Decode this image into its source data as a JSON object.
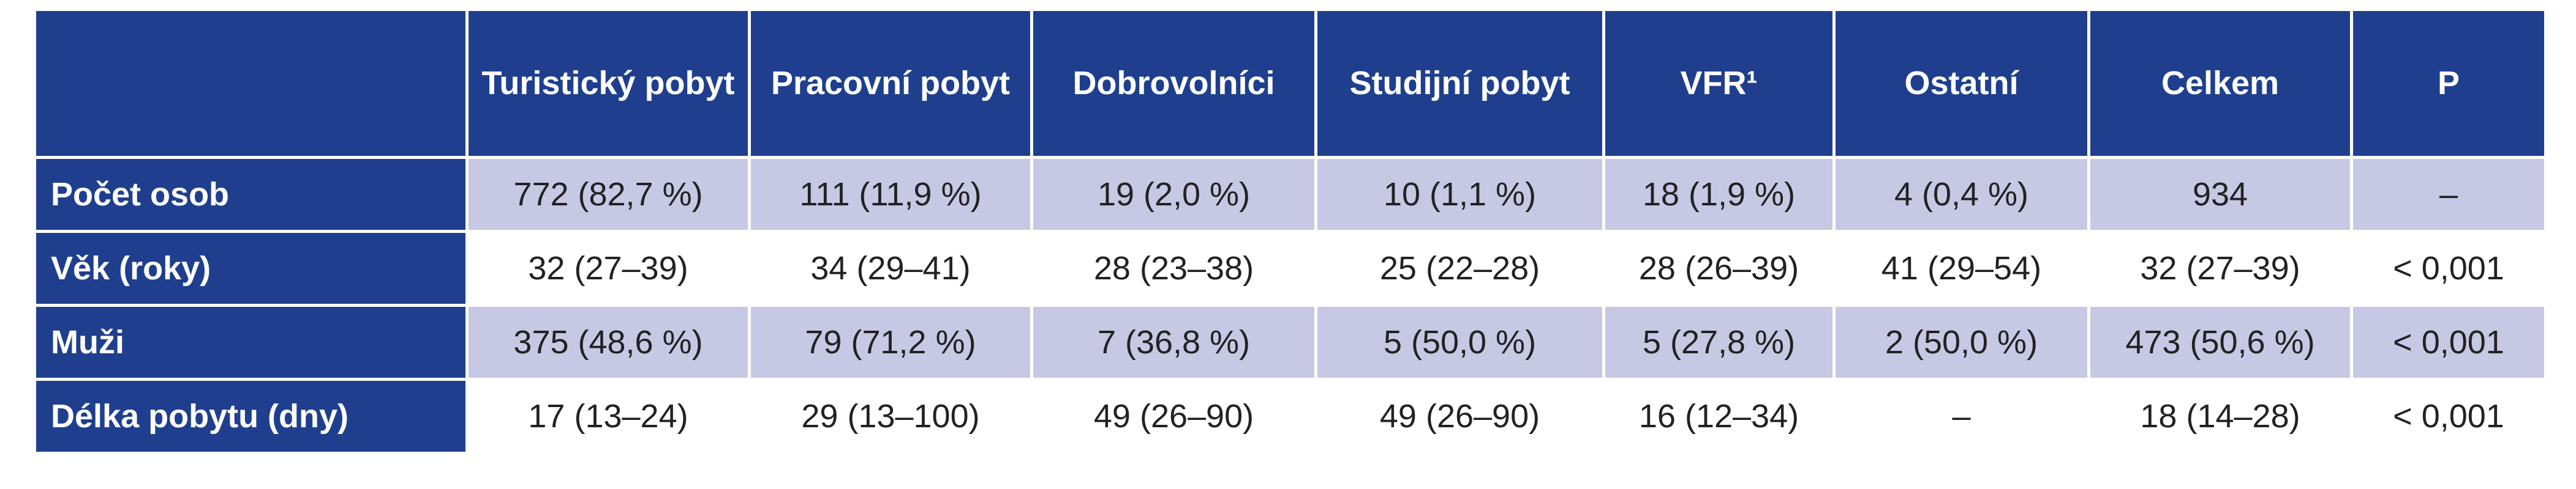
{
  "table": {
    "header": [
      "Turistický pobyt",
      "Pracovní pobyt",
      "Dobrovolníci",
      "Studijní pobyt",
      "VFR¹",
      "Ostatní",
      "Celkem",
      "P"
    ],
    "rows": [
      {
        "label": "Počet osob",
        "cells": [
          "772 (82,7 %)",
          "111 (11,9 %)",
          "19 (2,0 %)",
          "10 (1,1 %)",
          "18 (1,9 %)",
          "4 (0,4 %)",
          "934",
          "–"
        ]
      },
      {
        "label": "Věk (roky)",
        "cells": [
          "32 (27–39)",
          "34 (29–41)",
          "28 (23–38)",
          "25 (22–28)",
          "28 (26–39)",
          "41 (29–54)",
          "32 (27–39)",
          "< 0,001"
        ]
      },
      {
        "label": "Muži",
        "cells": [
          "375 (48,6 %)",
          "79 (71,2 %)",
          "7 (36,8 %)",
          "5 (50,0 %)",
          "5 (27,8 %)",
          "2 (50,0 %)",
          "473 (50,6 %)",
          "< 0,001"
        ]
      },
      {
        "label": "Délka pobytu (dny)",
        "cells": [
          "17 (13–24)",
          "29 (13–100)",
          "49 (26–90)",
          "49 (26–90)",
          "16 (12–34)",
          "–",
          "18 (14–28)",
          "< 0,001"
        ]
      }
    ]
  }
}
